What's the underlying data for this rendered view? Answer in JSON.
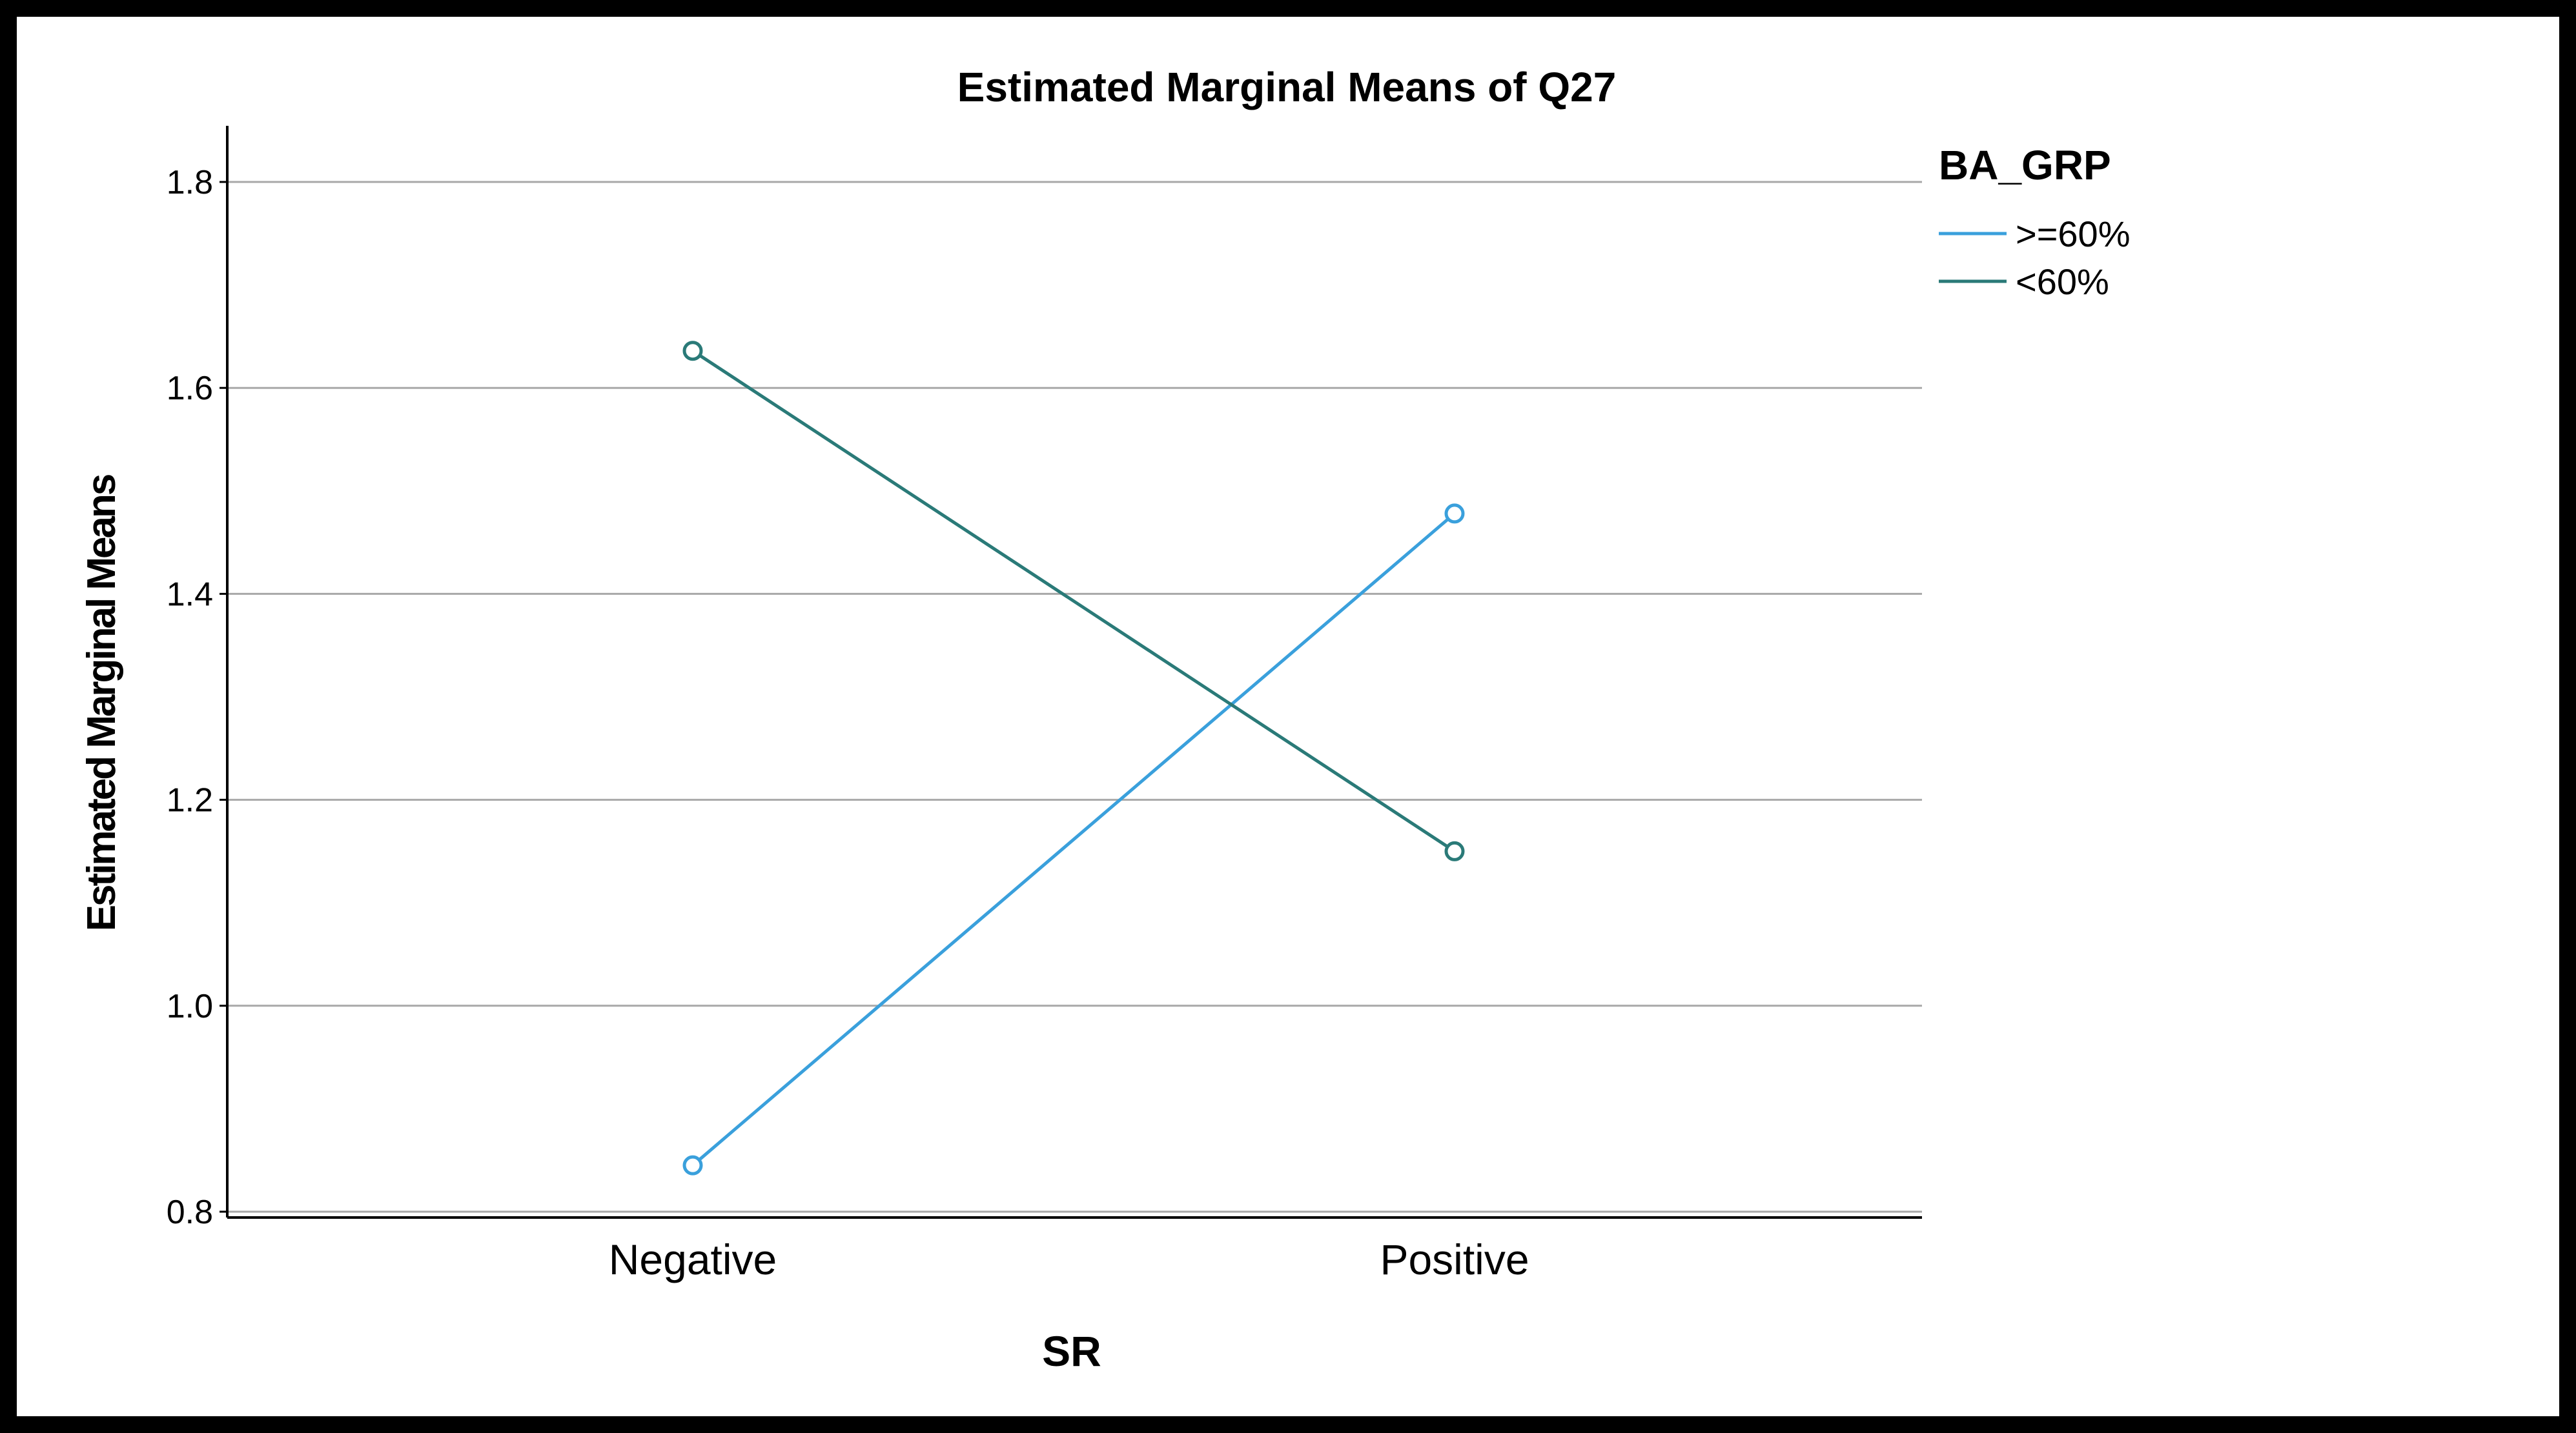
{
  "chart_data": {
    "type": "line",
    "title": "Estimated Marginal Means of Q27",
    "xlabel": "SR",
    "ylabel": "Estimated Marginal Means",
    "categories": [
      "Negative",
      "Positive"
    ],
    "yticks": [
      "0.8",
      "1.0",
      "1.2",
      "1.4",
      "1.6",
      "1.8"
    ],
    "ylim": [
      0.8,
      1.85
    ],
    "grid": true,
    "legend": {
      "title": "BA_GRP",
      "position": "top-right"
    },
    "series": [
      {
        "name": ">=60%",
        "values": [
          0.845,
          1.478
        ],
        "color": "#3aa0dc"
      },
      {
        "name": "<60%",
        "values": [
          1.636,
          1.15
        ],
        "color": "#2a7a78"
      }
    ]
  }
}
